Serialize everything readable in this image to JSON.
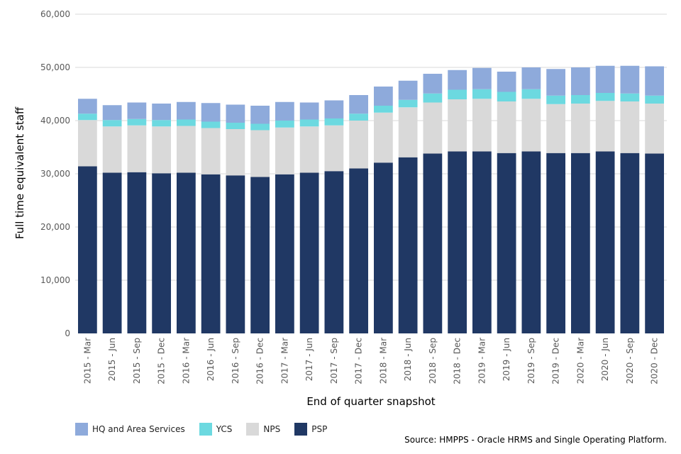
{
  "chart_data": {
    "type": "bar",
    "stacked": true,
    "xlabel": "End of quarter snapshot",
    "ylabel": "Full time equivalent staff",
    "ylim": [
      0,
      60000
    ],
    "yticks": [
      "0",
      "10,000",
      "20,000",
      "30,000",
      "40,000",
      "50,000",
      "60,000"
    ],
    "grid": true,
    "legend_position": "bottom-left",
    "categories": [
      "2015 - Mar",
      "2015 - Jun",
      "2015 - Sep",
      "2015 - Dec",
      "2016 - Mar",
      "2016 - Jun",
      "2016 - Sep",
      "2016 - Dec",
      "2017 - Mar",
      "2017 - Jun",
      "2017 - Sep",
      "2017 - Dec",
      "2018 - Mar",
      "2018 - Jun",
      "2018 - Sep",
      "2018 - Dec",
      "2019 - Mar",
      "2019 - Jun",
      "2019 - Sep",
      "2019 - Dec",
      "2020 - Mar",
      "2020 - Jun",
      "2020 - Sep",
      "2020 - Dec"
    ],
    "series": [
      {
        "name": "PSP",
        "color": "#203864",
        "values": [
          31400,
          30200,
          30300,
          30100,
          30200,
          29900,
          29700,
          29400,
          29900,
          30200,
          30500,
          31000,
          32100,
          33100,
          33800,
          34200,
          34200,
          33900,
          34200,
          33900,
          33900,
          34200,
          33900,
          33800
        ]
      },
      {
        "name": "NPS",
        "color": "#d9d9d9",
        "values": [
          8700,
          8700,
          8800,
          8800,
          8800,
          8700,
          8700,
          8800,
          8800,
          8700,
          8600,
          9000,
          9400,
          9400,
          9600,
          9800,
          9900,
          9700,
          9900,
          9200,
          9300,
          9500,
          9700,
          9400
        ]
      },
      {
        "name": "YCS",
        "color": "#6cd9e0",
        "values": [
          1200,
          1200,
          1200,
          1200,
          1200,
          1200,
          1200,
          1200,
          1300,
          1300,
          1300,
          1300,
          1300,
          1400,
          1700,
          1800,
          1800,
          1800,
          1800,
          1600,
          1600,
          1500,
          1500,
          1500
        ]
      },
      {
        "name": "HQ and Area Services",
        "color": "#8eaadb",
        "values": [
          2800,
          2800,
          3100,
          3100,
          3300,
          3500,
          3400,
          3400,
          3500,
          3200,
          3400,
          3500,
          3600,
          3600,
          3700,
          3700,
          4000,
          3800,
          4100,
          5000,
          5200,
          5100,
          5200,
          5500
        ]
      }
    ],
    "source": "Source: HMPPS - Oracle HRMS and Single Operating Platform."
  },
  "legend": [
    {
      "label": "HQ and Area Services",
      "color": "#8eaadb"
    },
    {
      "label": "YCS",
      "color": "#6cd9e0"
    },
    {
      "label": "NPS",
      "color": "#d9d9d9"
    },
    {
      "label": "PSP",
      "color": "#203864"
    }
  ]
}
